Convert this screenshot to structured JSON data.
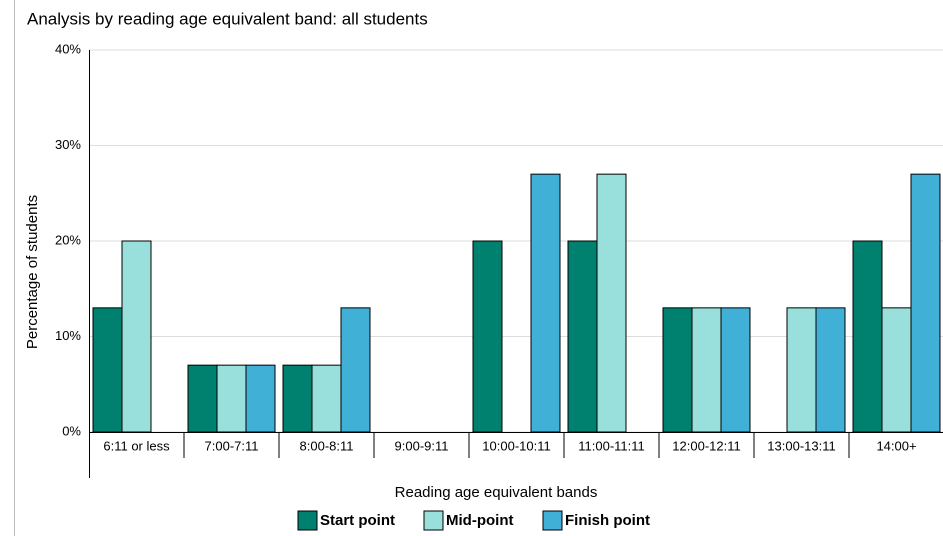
{
  "chart_data": {
    "type": "bar",
    "title": "Analysis by reading age equivalent band: all students",
    "x_label": "Reading age equivalent bands",
    "y_label": "Percentage of students",
    "categories": [
      "6:11 or less",
      "7:00-7:11",
      "8:00-8:11",
      "9:00-9:11",
      "10:00-10:11",
      "11:00-11:11",
      "12:00-12:11",
      "13:00-13:11",
      "14:00+"
    ],
    "series": [
      {
        "name": "Start point",
        "color": "#00806e",
        "values": [
          13,
          7,
          7,
          0,
          20,
          20,
          13,
          0,
          20
        ]
      },
      {
        "name": "Mid-point",
        "color": "#99e0dc",
        "values": [
          20,
          7,
          7,
          0,
          0,
          27,
          13,
          13,
          13
        ]
      },
      {
        "name": "Finish point",
        "color": "#40b0d6",
        "values": [
          0,
          7,
          13,
          0,
          27,
          0,
          13,
          13,
          27
        ]
      }
    ],
    "ylim": [
      0,
      40
    ],
    "yticks": [
      {
        "value": 0,
        "label": "0%"
      },
      {
        "value": 10,
        "label": "10%"
      },
      {
        "value": 20,
        "label": "20%"
      },
      {
        "value": 30,
        "label": "30%"
      },
      {
        "value": 40,
        "label": "40%"
      }
    ],
    "grid": true
  }
}
